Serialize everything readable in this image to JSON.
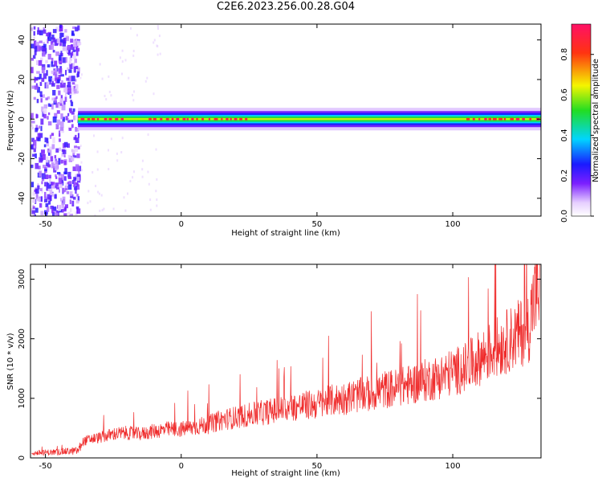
{
  "page_title": "C2E6.2023.256.00.28.G04",
  "chart_data": [
    {
      "type": "heatmap",
      "title": "",
      "xlabel": "Height of straight line (km)",
      "ylabel": "Frequency (Hz)",
      "xlim": [
        -55.5,
        132.5
      ],
      "ylim": [
        -49,
        48
      ],
      "xticks": [
        -50,
        0,
        50,
        100
      ],
      "yticks": [
        -40,
        -20,
        0,
        20,
        40
      ],
      "colorbar": {
        "label": "Normalized spectral amplitude",
        "range": [
          0,
          0.95
        ],
        "ticks": [
          0.0,
          0.2,
          0.4,
          0.6,
          0.8
        ],
        "colormap": [
          "#ffffff",
          "#e6cfff",
          "#7b1fff",
          "#1a1aff",
          "#00d5ff",
          "#22dd22",
          "#f5f500",
          "#ff3311",
          "#ff1166"
        ]
      },
      "description_regions": [
        {
          "x_range": [
            -55.5,
            -38
          ],
          "frequency_range": [
            -49,
            48
          ],
          "amplitude": 0.05,
          "pattern": "broadband noise"
        },
        {
          "x_range": [
            -38,
            132.5
          ],
          "frequency_center": 0,
          "frequency_halfwidth": 3,
          "amplitude_peak": 0.9,
          "pattern": "narrow carrier line"
        }
      ],
      "carrier_peak_segments": [
        [
          -37,
          -20
        ],
        [
          -12,
          25
        ],
        [
          105,
          132
        ]
      ]
    },
    {
      "type": "line",
      "title": "",
      "xlabel": "Height of straight line (km)",
      "ylabel": "SNR (10 * v/v)",
      "xlim": [
        -55.5,
        132.5
      ],
      "ylim": [
        0,
        3250
      ],
      "xticks": [
        -50,
        0,
        50,
        100
      ],
      "yticks": [
        0,
        1000,
        2000,
        3000
      ],
      "series": [
        {
          "color": "#ef2a2a",
          "x": [
            -55,
            -45,
            -38,
            -36,
            -33,
            -30,
            -25,
            -20,
            -15,
            -10,
            -5,
            0,
            5,
            10,
            15,
            20,
            25,
            30,
            35,
            40,
            45,
            50,
            55,
            60,
            65,
            70,
            75,
            80,
            85,
            90,
            95,
            100,
            105,
            110,
            115,
            120,
            125,
            128,
            130,
            132
          ],
          "y": [
            80,
            100,
            120,
            280,
            320,
            340,
            400,
            420,
            400,
            450,
            480,
            480,
            520,
            560,
            640,
            680,
            720,
            760,
            800,
            840,
            880,
            900,
            960,
            1000,
            1050,
            1080,
            1150,
            1180,
            1240,
            1300,
            1360,
            1440,
            1520,
            1680,
            1820,
            1960,
            2100,
            2200,
            2700,
            2800
          ]
        }
      ]
    }
  ]
}
